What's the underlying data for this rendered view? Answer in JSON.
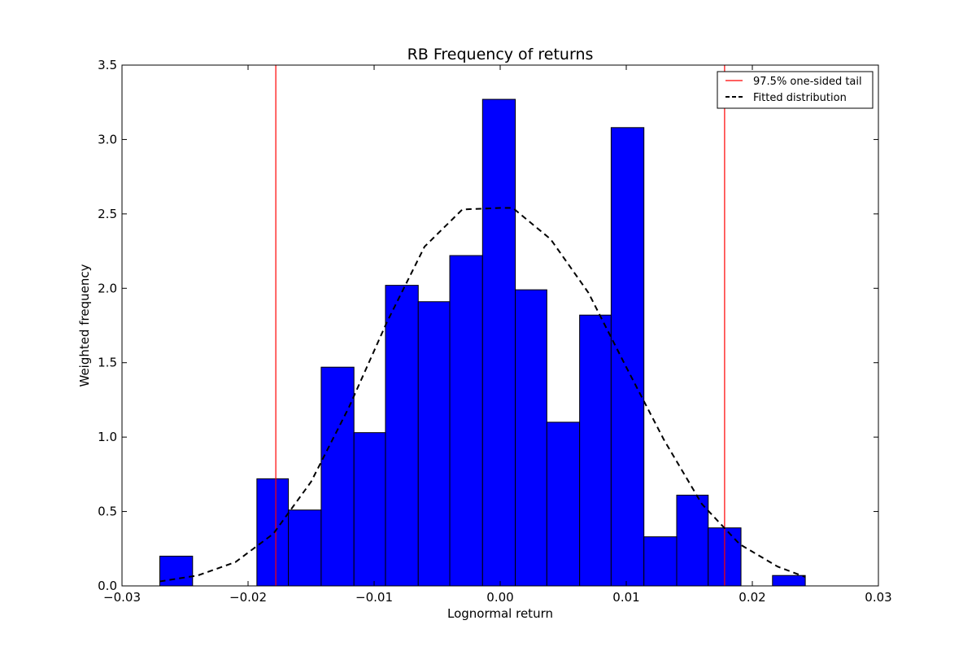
{
  "chart_data": {
    "type": "bar",
    "title": "RB Frequency of returns",
    "xlabel": "Lognormal return",
    "ylabel": "Weighted frequency",
    "xlim": [
      -0.03,
      0.03
    ],
    "ylim": [
      0,
      3.5
    ],
    "xticks": [
      -0.03,
      -0.02,
      -0.01,
      0.0,
      0.01,
      0.02,
      0.03
    ],
    "xtick_labels": [
      "−0.03",
      "−0.02",
      "−0.01",
      "0.00",
      "0.01",
      "0.02",
      "0.03"
    ],
    "yticks": [
      0.0,
      0.5,
      1.0,
      1.5,
      2.0,
      2.5,
      3.0,
      3.5
    ],
    "ytick_labels": [
      "0.0",
      "0.5",
      "1.0",
      "1.5",
      "2.0",
      "2.5",
      "3.0",
      "3.5"
    ],
    "grid": false,
    "bar_color": "#0000ff",
    "bins": [
      {
        "x0": -0.027,
        "x1": -0.0244,
        "value": 0.2
      },
      {
        "x0": -0.0244,
        "x1": -0.0219,
        "value": 0.0
      },
      {
        "x0": -0.0219,
        "x1": -0.0193,
        "value": 0.0
      },
      {
        "x0": -0.0193,
        "x1": -0.0168,
        "value": 0.72
      },
      {
        "x0": -0.0168,
        "x1": -0.0142,
        "value": 0.51
      },
      {
        "x0": -0.0142,
        "x1": -0.0116,
        "value": 1.47
      },
      {
        "x0": -0.0116,
        "x1": -0.0091,
        "value": 1.03
      },
      {
        "x0": -0.0091,
        "x1": -0.0065,
        "value": 2.02
      },
      {
        "x0": -0.0065,
        "x1": -0.004,
        "value": 1.91
      },
      {
        "x0": -0.004,
        "x1": -0.0014,
        "value": 2.22
      },
      {
        "x0": -0.0014,
        "x1": 0.0012,
        "value": 3.27
      },
      {
        "x0": 0.0012,
        "x1": 0.0037,
        "value": 1.99
      },
      {
        "x0": 0.0037,
        "x1": 0.0063,
        "value": 1.1
      },
      {
        "x0": 0.0063,
        "x1": 0.0088,
        "value": 1.82
      },
      {
        "x0": 0.0088,
        "x1": 0.0114,
        "value": 3.08
      },
      {
        "x0": 0.0114,
        "x1": 0.014,
        "value": 0.33
      },
      {
        "x0": 0.014,
        "x1": 0.0165,
        "value": 0.61
      },
      {
        "x0": 0.0165,
        "x1": 0.0191,
        "value": 0.39
      },
      {
        "x0": 0.0191,
        "x1": 0.0216,
        "value": 0.0
      },
      {
        "x0": 0.0216,
        "x1": 0.0242,
        "value": 0.07
      }
    ],
    "tail_lines": {
      "name": "97.5% one-sided tail",
      "color": "#ff0000",
      "x": [
        -0.0178,
        0.0178
      ]
    },
    "fitted": {
      "name": "Fitted distribution",
      "color": "#000000",
      "x": [
        -0.027,
        -0.024,
        -0.021,
        -0.018,
        -0.015,
        -0.012,
        -0.009,
        -0.006,
        -0.003,
        0.0,
        0.001,
        0.004,
        0.007,
        0.01,
        0.013,
        0.016,
        0.019,
        0.022,
        0.0242
      ],
      "y": [
        0.03,
        0.07,
        0.16,
        0.35,
        0.7,
        1.2,
        1.77,
        2.28,
        2.53,
        2.54,
        2.54,
        2.33,
        1.97,
        1.47,
        0.98,
        0.55,
        0.28,
        0.13,
        0.06
      ]
    },
    "legend": {
      "placement": "top-right",
      "entries": [
        "97.5% one-sided tail",
        "Fitted distribution"
      ]
    }
  }
}
